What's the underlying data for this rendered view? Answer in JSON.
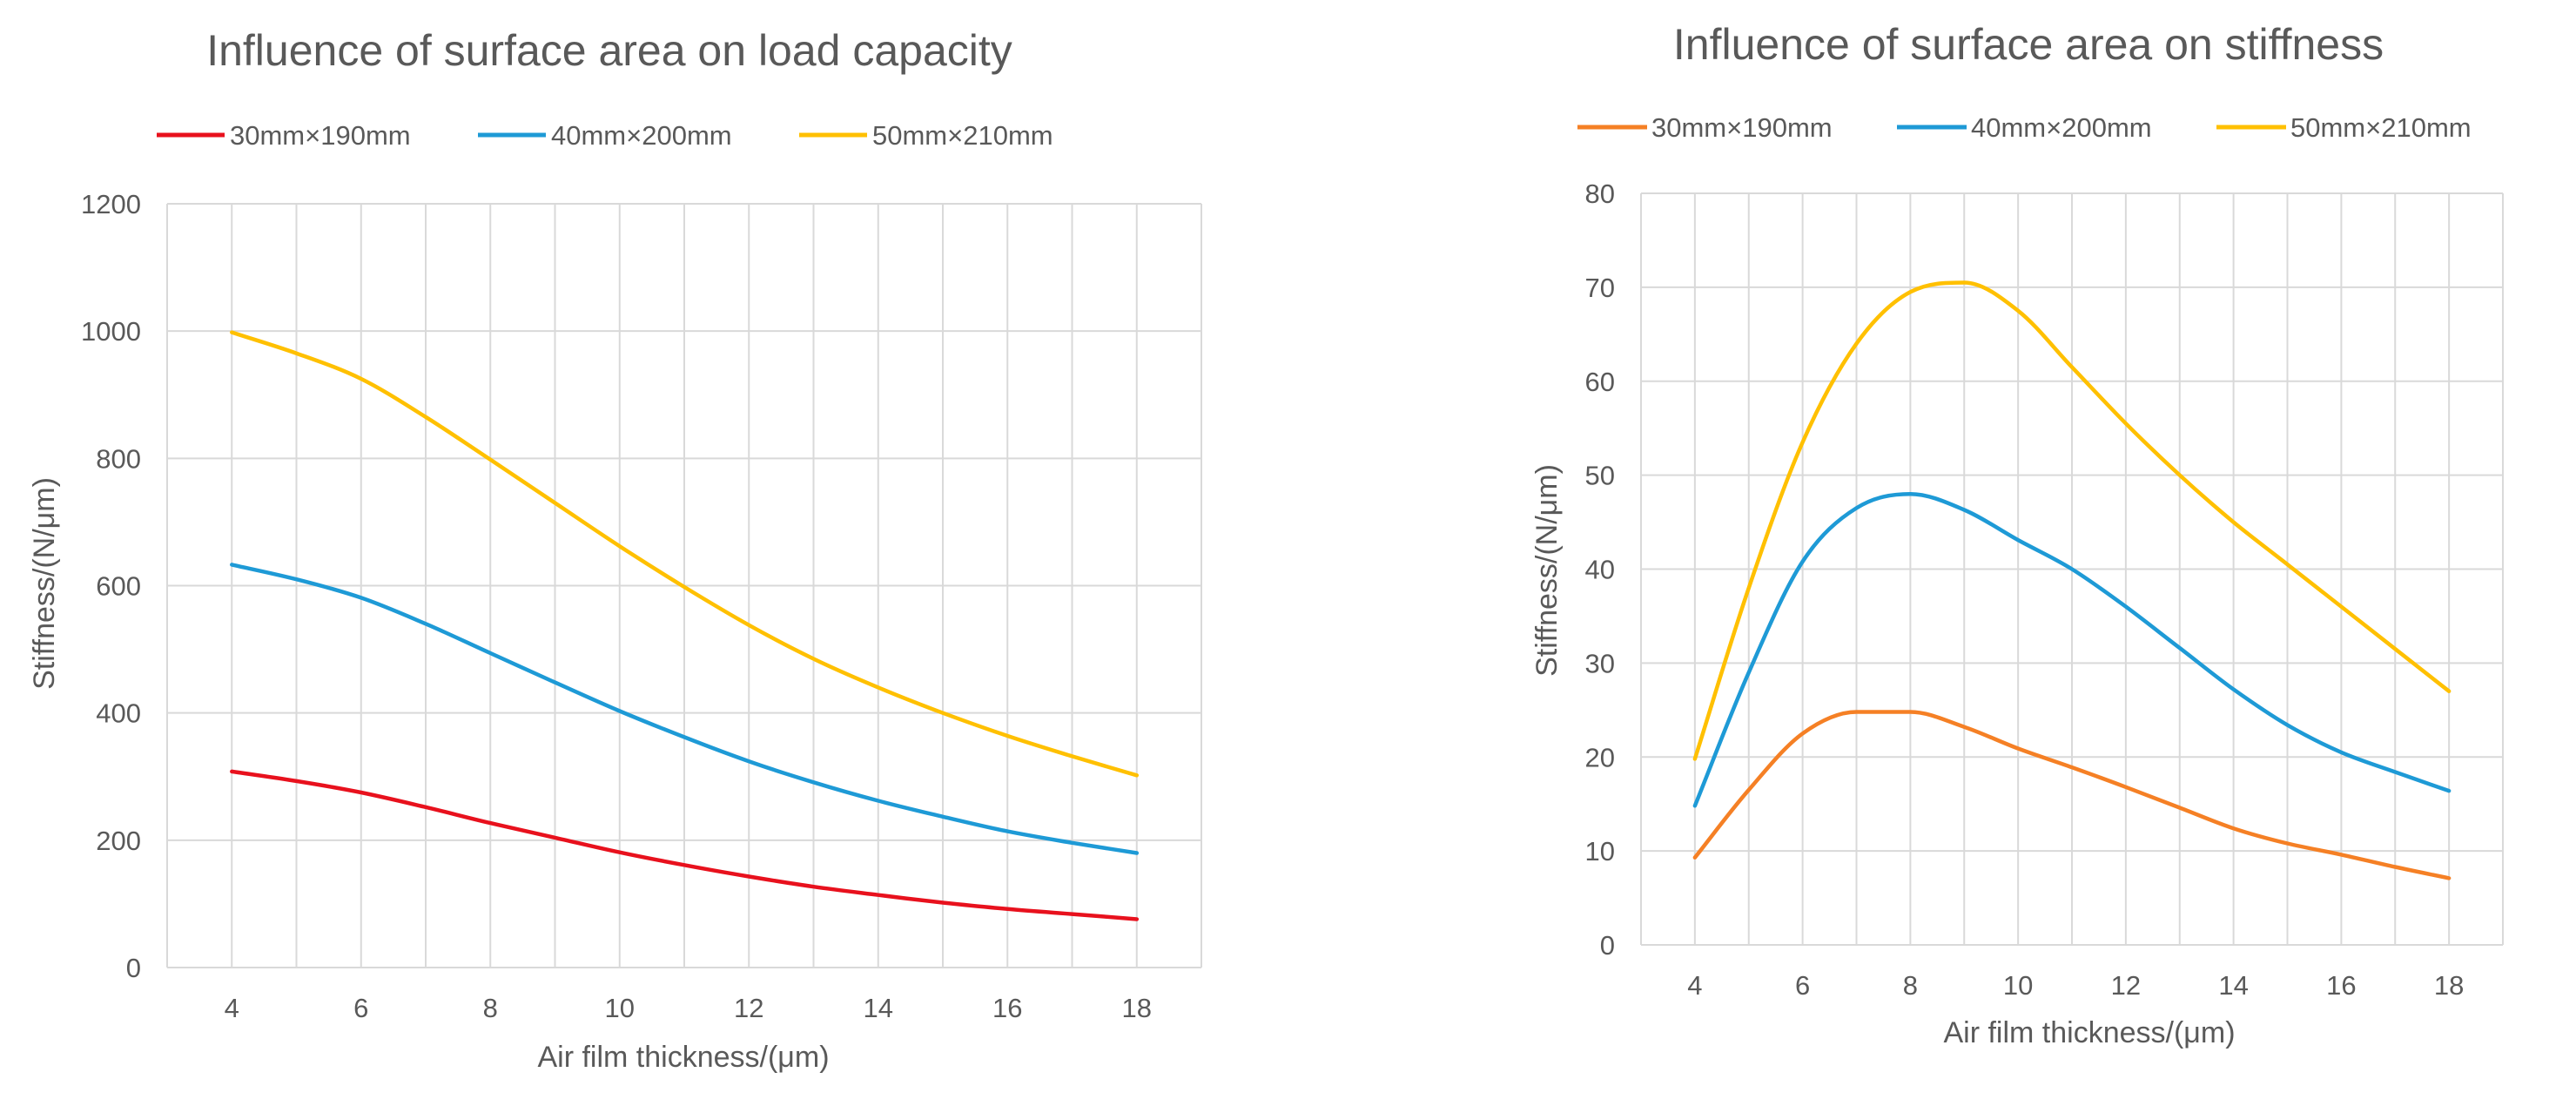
{
  "chart_data": [
    {
      "type": "line",
      "title": "Influence of surface area on load capacity",
      "xlabel": "Air film thickness/(μm)",
      "ylabel": "Stiffness/(N/μm)",
      "xlim": [
        3,
        19
      ],
      "ylim": [
        0,
        1200
      ],
      "xticks": [
        4,
        6,
        8,
        10,
        12,
        14,
        16,
        18
      ],
      "yticks": [
        0,
        200,
        400,
        600,
        800,
        1000,
        1200
      ],
      "grid": true,
      "legend_position": "top",
      "x": [
        4,
        5,
        6,
        7,
        8,
        9,
        10,
        11,
        12,
        13,
        14,
        15,
        16,
        17,
        18
      ],
      "series": [
        {
          "name": "30mm×190mm",
          "color": "#e8111d",
          "values": [
            308,
            293,
            275,
            252,
            227,
            204,
            181,
            161,
            143,
            127,
            114,
            102,
            92,
            84,
            76
          ]
        },
        {
          "name": "40mm×200mm",
          "color": "#1e9ad6",
          "values": [
            633,
            610,
            581,
            540,
            494,
            448,
            403,
            362,
            324,
            291,
            262,
            237,
            214,
            196,
            180
          ]
        },
        {
          "name": "50mm×210mm",
          "color": "#ffc000",
          "values": [
            998,
            965,
            925,
            865,
            798,
            730,
            662,
            598,
            538,
            485,
            440,
            400,
            364,
            332,
            302
          ]
        }
      ]
    },
    {
      "type": "line",
      "title": "Influence of surface area on stiffness",
      "xlabel": "Air film thickness/(μm)",
      "ylabel": "Stiffness/(N/μm)",
      "xlim": [
        3,
        19
      ],
      "ylim": [
        0,
        80
      ],
      "xticks": [
        4,
        6,
        8,
        10,
        12,
        14,
        16,
        18
      ],
      "yticks": [
        0,
        10,
        20,
        30,
        40,
        50,
        60,
        70,
        80
      ],
      "grid": true,
      "legend_position": "top",
      "x": [
        4,
        5,
        6,
        7,
        8,
        9,
        10,
        11,
        12,
        13,
        14,
        15,
        16,
        17,
        18
      ],
      "series": [
        {
          "name": "30mm×190mm",
          "color": "#f58025",
          "values": [
            9.3,
            16.5,
            22.5,
            24.8,
            24.8,
            23.2,
            20.9,
            18.9,
            16.8,
            14.6,
            12.4,
            10.8,
            9.6,
            8.3,
            7.1
          ]
        },
        {
          "name": "40mm×200mm",
          "color": "#1e9ad6",
          "values": [
            14.8,
            29.0,
            40.8,
            46.5,
            48.0,
            46.3,
            43.1,
            40.0,
            36.0,
            31.6,
            27.2,
            23.4,
            20.5,
            18.4,
            16.4
          ]
        },
        {
          "name": "50mm×210mm",
          "color": "#ffc000",
          "values": [
            19.8,
            38.0,
            53.5,
            64.0,
            69.5,
            70.5,
            67.5,
            61.5,
            55.5,
            50.0,
            45.0,
            40.5,
            36.0,
            31.5,
            27.0
          ]
        }
      ]
    }
  ]
}
